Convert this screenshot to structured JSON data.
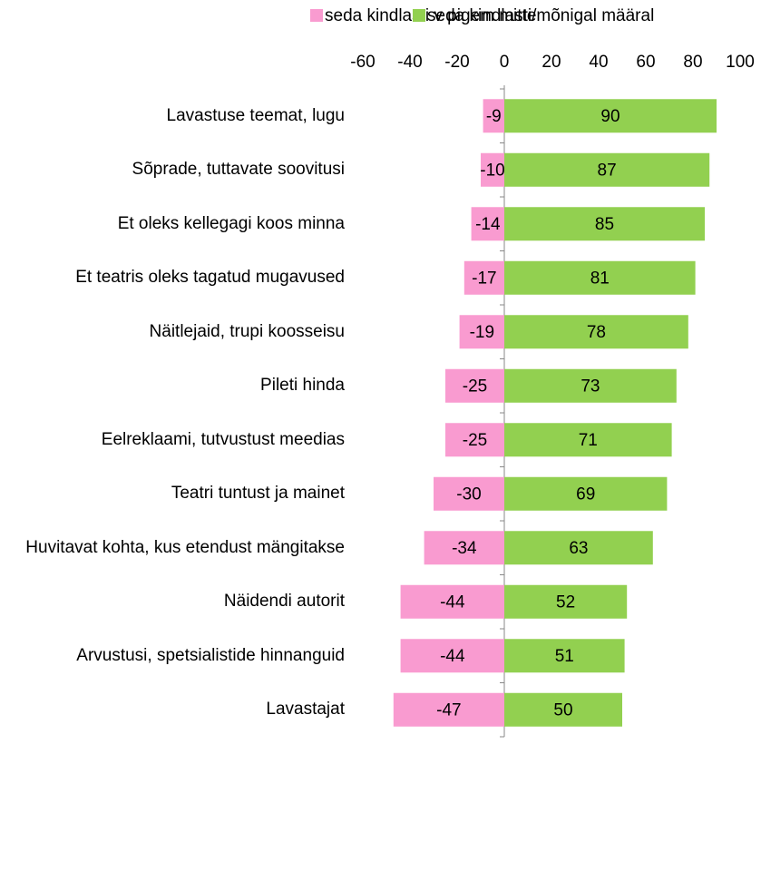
{
  "chart_data": {
    "type": "bar",
    "orientation": "horizontal",
    "stacked": "diverging",
    "categories": [
      "Lavastuse teemat, lugu",
      "Sõprade, tuttavate soovitusi",
      "Et oleks kellegagi koos minna",
      "Et teatris oleks tagatud mugavused",
      "Näitlejaid, trupi koosseisu",
      "Pileti hinda",
      "Eelreklaami, tutvustust  meedias",
      "Teatri tuntust ja mainet",
      "Huvitavat kohta, kus etendust mängitakse",
      "Näidendi autorit",
      "Arvustusi, spetsialistide hinnanguid",
      "Lavastajat"
    ],
    "series": [
      {
        "name": "seda kindlasti v pigem mitte",
        "color": "#f99bd0",
        "values": [
          -9,
          -10,
          -14,
          -17,
          -19,
          -25,
          -25,
          -30,
          -34,
          -44,
          -44,
          -47
        ]
      },
      {
        "name": "seda kindlasti/mõnigal  määral",
        "color": "#92d050",
        "values": [
          90,
          87,
          85,
          81,
          78,
          73,
          71,
          69,
          63,
          52,
          51,
          50
        ]
      }
    ],
    "xlim": [
      -60,
      100
    ],
    "xticks": [
      -60,
      -40,
      -20,
      0,
      20,
      40,
      60,
      80,
      100
    ],
    "legend": "top"
  }
}
